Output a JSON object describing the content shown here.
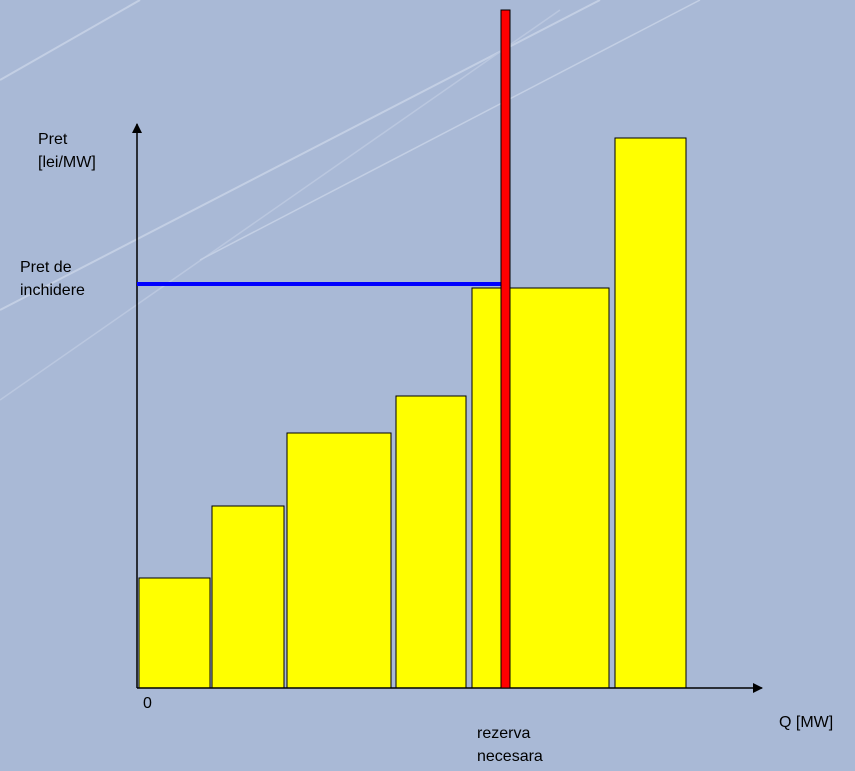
{
  "colors": {
    "background": "#a9b9d6",
    "bar_fill": "#ffff00",
    "bar_stroke": "#000000",
    "reserve_line": "#ff0000",
    "price_line": "#0000ff",
    "axis": "#000000"
  },
  "labels": {
    "y_axis_line1": "Pret",
    "y_axis_line2": "[lei/MW]",
    "closing_price_line1": "Pret de",
    "closing_price_line2": "inchidere",
    "origin": "0",
    "x_axis": "Q [MW]",
    "reserve_line1": "rezerva",
    "reserve_line2": "necesara"
  },
  "chart_data": {
    "type": "bar",
    "xlabel": "Q [MW]",
    "ylabel": "Pret [lei/MW]",
    "description_note": "",
    "bars": [
      {
        "value": 110
      },
      {
        "value": 182
      },
      {
        "value": 255
      },
      {
        "value": 292
      },
      {
        "value": 400
      },
      {
        "value": 550
      }
    ],
    "closing_price_level": 404,
    "reserve_marker": "rezerva necesara"
  }
}
